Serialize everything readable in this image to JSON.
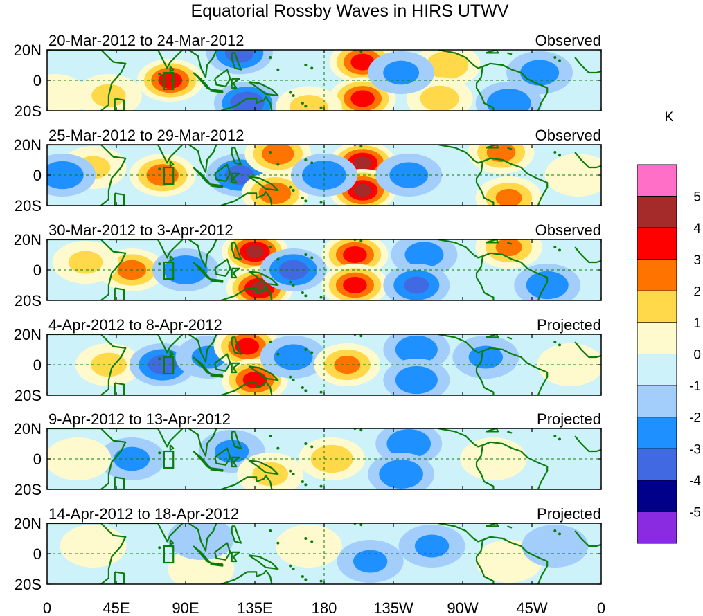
{
  "title": "Equatorial Rossby Waves in HIRS UTWV",
  "colorbar": {
    "unit": "K",
    "levels": [
      "5",
      "4",
      "3",
      "2",
      "1",
      "0",
      "-1",
      "-2",
      "-3",
      "-4",
      "-5"
    ],
    "colors": [
      "#ff6ec7",
      "#a52a2a",
      "#ff0000",
      "#ff7300",
      "#ffd94a",
      "#fffacd",
      "#cdf2fa",
      "#a3cdfa",
      "#1e90ff",
      "#4169e1",
      "#00008b",
      "#8a2be2"
    ]
  },
  "lat_labels": [
    "20N",
    "0",
    "20S"
  ],
  "lon_labels": [
    "0",
    "45E",
    "90E",
    "135E",
    "180",
    "135W",
    "90W",
    "45W",
    "0"
  ],
  "panels": [
    {
      "date": "20-Mar-2012 to 24-Mar-2012",
      "status": "Observed",
      "anomalies": [
        {
          "lon": 80,
          "lat": 0,
          "v": 3.5
        },
        {
          "lon": 40,
          "lat": -10,
          "v": 1.2
        },
        {
          "lon": 5,
          "lat": -10,
          "v": 1.0
        },
        {
          "lon": 125,
          "lat": 18,
          "v": -2.5
        },
        {
          "lon": 130,
          "lat": -15,
          "v": -3.0
        },
        {
          "lon": 205,
          "lat": 12,
          "v": 3.5
        },
        {
          "lon": 205,
          "lat": -12,
          "v": 3.5
        },
        {
          "lon": 260,
          "lat": 10,
          "v": 1.8
        },
        {
          "lon": 255,
          "lat": -12,
          "v": 1.5
        },
        {
          "lon": 300,
          "lat": -15,
          "v": -2.0
        },
        {
          "lon": 320,
          "lat": 5,
          "v": -1.5
        },
        {
          "lon": 170,
          "lat": -18,
          "v": 1.5
        },
        {
          "lon": 230,
          "lat": 5,
          "v": -1.3
        }
      ]
    },
    {
      "date": "25-Mar-2012 to 29-Mar-2012",
      "status": "Observed",
      "anomalies": [
        {
          "lon": 75,
          "lat": 0,
          "v": 2.8
        },
        {
          "lon": 30,
          "lat": 5,
          "v": 1.2
        },
        {
          "lon": 10,
          "lat": 0,
          "v": -1.8
        },
        {
          "lon": 125,
          "lat": 0,
          "v": -2.5
        },
        {
          "lon": 150,
          "lat": 14,
          "v": 2.8
        },
        {
          "lon": 148,
          "lat": -12,
          "v": 2.8
        },
        {
          "lon": 205,
          "lat": 8,
          "v": 4.2
        },
        {
          "lon": 205,
          "lat": -10,
          "v": 4.2
        },
        {
          "lon": 180,
          "lat": 0,
          "v": -2.0
        },
        {
          "lon": 235,
          "lat": 0,
          "v": -1.5
        },
        {
          "lon": 295,
          "lat": 15,
          "v": 2.5
        },
        {
          "lon": 300,
          "lat": -15,
          "v": 2.3
        },
        {
          "lon": 345,
          "lat": 0,
          "v": 1.0
        }
      ]
    },
    {
      "date": "30-Mar-2012 to 3-Apr-2012",
      "status": "Observed",
      "anomalies": [
        {
          "lon": 55,
          "lat": 0,
          "v": 2.5
        },
        {
          "lon": 25,
          "lat": 5,
          "v": 1.2
        },
        {
          "lon": 90,
          "lat": 0,
          "v": -2.0
        },
        {
          "lon": 135,
          "lat": 12,
          "v": 4.2
        },
        {
          "lon": 138,
          "lat": -12,
          "v": 4.2
        },
        {
          "lon": 160,
          "lat": 0,
          "v": -2.5
        },
        {
          "lon": 200,
          "lat": 10,
          "v": 3.5
        },
        {
          "lon": 200,
          "lat": -10,
          "v": 3.5
        },
        {
          "lon": 245,
          "lat": 10,
          "v": -1.5
        },
        {
          "lon": 240,
          "lat": -10,
          "v": -2.2
        },
        {
          "lon": 300,
          "lat": 15,
          "v": 2.3
        },
        {
          "lon": 325,
          "lat": -10,
          "v": -1.8
        }
      ]
    },
    {
      "date": "4-Apr-2012 to 8-Apr-2012",
      "status": "Projected",
      "anomalies": [
        {
          "lon": 40,
          "lat": 0,
          "v": 1.3
        },
        {
          "lon": 75,
          "lat": 0,
          "v": -2.5
        },
        {
          "lon": 105,
          "lat": 5,
          "v": -1.2
        },
        {
          "lon": 130,
          "lat": 12,
          "v": 3.5
        },
        {
          "lon": 135,
          "lat": -10,
          "v": 3.5
        },
        {
          "lon": 160,
          "lat": 5,
          "v": -1.5
        },
        {
          "lon": 195,
          "lat": 0,
          "v": 2.3
        },
        {
          "lon": 240,
          "lat": 10,
          "v": -1.8
        },
        {
          "lon": 240,
          "lat": -10,
          "v": -1.8
        },
        {
          "lon": 285,
          "lat": 5,
          "v": -1.2
        },
        {
          "lon": 340,
          "lat": 0,
          "v": 1.0
        }
      ]
    },
    {
      "date": "9-Apr-2012 to 13-Apr-2012",
      "status": "Projected",
      "anomalies": [
        {
          "lon": 55,
          "lat": 0,
          "v": -1.3
        },
        {
          "lon": 120,
          "lat": 5,
          "v": -1.2
        },
        {
          "lon": 145,
          "lat": -10,
          "v": 1.3
        },
        {
          "lon": 185,
          "lat": 0,
          "v": 1.8
        },
        {
          "lon": 235,
          "lat": 10,
          "v": -2.0
        },
        {
          "lon": 230,
          "lat": -10,
          "v": -2.0
        },
        {
          "lon": 290,
          "lat": 0,
          "v": 1.0
        },
        {
          "lon": 20,
          "lat": 0,
          "v": 0.8
        }
      ]
    },
    {
      "date": "14-Apr-2012 to 18-Apr-2012",
      "status": "Projected",
      "anomalies": [
        {
          "lon": 30,
          "lat": 5,
          "v": 0.8
        },
        {
          "lon": 100,
          "lat": -10,
          "v": 1.0
        },
        {
          "lon": 100,
          "lat": 10,
          "v": -0.8
        },
        {
          "lon": 170,
          "lat": 5,
          "v": 1.0
        },
        {
          "lon": 210,
          "lat": -5,
          "v": -1.2
        },
        {
          "lon": 250,
          "lat": 5,
          "v": -1.2
        },
        {
          "lon": 300,
          "lat": -5,
          "v": 0.8
        },
        {
          "lon": 330,
          "lat": 5,
          "v": -0.8
        }
      ]
    }
  ]
}
